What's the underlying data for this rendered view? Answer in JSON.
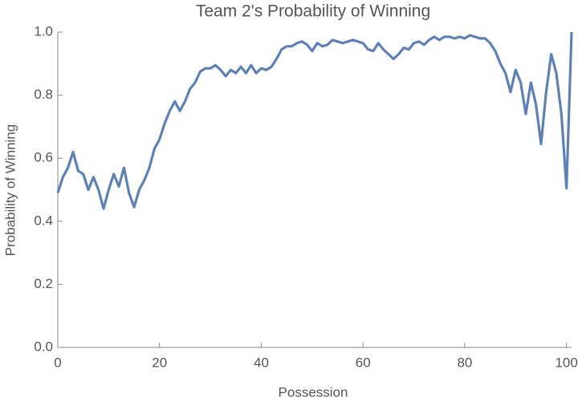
{
  "chart_data": {
    "type": "line",
    "title": "Team 2's Probability of Winning",
    "x_label": "Possession",
    "y_label": "Probability of Winning",
    "x": [
      0,
      1,
      2,
      3,
      4,
      5,
      6,
      7,
      8,
      9,
      10,
      11,
      12,
      13,
      14,
      15,
      16,
      17,
      18,
      19,
      20,
      21,
      22,
      23,
      24,
      25,
      26,
      27,
      28,
      29,
      30,
      31,
      32,
      33,
      34,
      35,
      36,
      37,
      38,
      39,
      40,
      41,
      42,
      43,
      44,
      45,
      46,
      47,
      48,
      49,
      50,
      51,
      52,
      53,
      54,
      55,
      56,
      57,
      58,
      59,
      60,
      61,
      62,
      63,
      64,
      65,
      66,
      67,
      68,
      69,
      70,
      71,
      72,
      73,
      74,
      75,
      76,
      77,
      78,
      79,
      80,
      81,
      82,
      83,
      84,
      85,
      86,
      87,
      88,
      89,
      90,
      91,
      92,
      93,
      94,
      95,
      96,
      97,
      98,
      99,
      100,
      101
    ],
    "series": [
      {
        "name": "Team 2",
        "color": "#5e81b5",
        "values": [
          0.49,
          0.54,
          0.57,
          0.62,
          0.56,
          0.55,
          0.5,
          0.54,
          0.5,
          0.44,
          0.5,
          0.55,
          0.51,
          0.57,
          0.49,
          0.445,
          0.5,
          0.53,
          0.57,
          0.63,
          0.66,
          0.71,
          0.75,
          0.78,
          0.75,
          0.78,
          0.82,
          0.84,
          0.875,
          0.885,
          0.885,
          0.895,
          0.88,
          0.86,
          0.88,
          0.87,
          0.89,
          0.87,
          0.895,
          0.87,
          0.885,
          0.88,
          0.89,
          0.915,
          0.945,
          0.955,
          0.955,
          0.965,
          0.97,
          0.96,
          0.94,
          0.965,
          0.955,
          0.96,
          0.975,
          0.97,
          0.965,
          0.97,
          0.975,
          0.97,
          0.965,
          0.945,
          0.94,
          0.965,
          0.945,
          0.93,
          0.915,
          0.93,
          0.95,
          0.945,
          0.965,
          0.97,
          0.96,
          0.975,
          0.985,
          0.975,
          0.985,
          0.985,
          0.98,
          0.985,
          0.98,
          0.99,
          0.985,
          0.98,
          0.98,
          0.965,
          0.94,
          0.9,
          0.87,
          0.81,
          0.88,
          0.84,
          0.74,
          0.84,
          0.77,
          0.645,
          0.81,
          0.93,
          0.87,
          0.74,
          0.505,
          1.0
        ]
      }
    ],
    "xlim": [
      0,
      101
    ],
    "ylim": [
      0,
      1
    ],
    "xticks": [
      0,
      20,
      40,
      60,
      80,
      100
    ],
    "yticks": [
      {
        "value": 0,
        "label": "0.0"
      },
      0.2,
      0.4,
      0.6,
      0.8,
      {
        "value": 1,
        "label": "1.0"
      }
    ]
  }
}
